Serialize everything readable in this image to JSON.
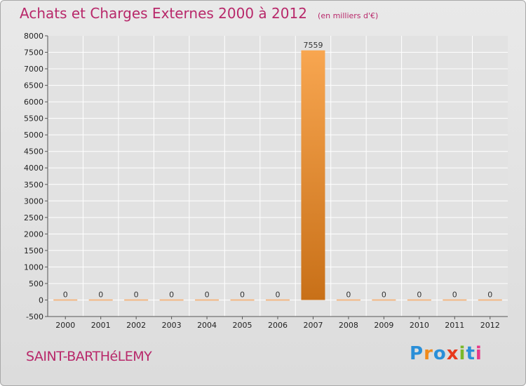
{
  "header": {
    "title": "Achats et Charges Externes 2000 à 2012",
    "subtitle": "(en milliers d'€)"
  },
  "footer": {
    "commune": "SAINT-BARTHéLEMY",
    "logo_text": "Proxiti"
  },
  "colors": {
    "title": "#b8286a",
    "bar_top": "#f8a650",
    "bar_bottom": "#c87018",
    "zero_bar": "#f4b884",
    "grid": "#ffffff",
    "logo": [
      "#2a8fd8",
      "#f08a1c",
      "#2a8fd8",
      "#e8381c",
      "#7ab82a",
      "#2a8fd8",
      "#e83888"
    ]
  },
  "chart_data": {
    "type": "bar",
    "title": "Achats et Charges Externes 2000 à 2012",
    "subtitle": "(en milliers d'€)",
    "categories": [
      "2000",
      "2001",
      "2002",
      "2003",
      "2004",
      "2005",
      "2006",
      "2007",
      "2008",
      "2009",
      "2010",
      "2011",
      "2012"
    ],
    "values": [
      0,
      0,
      0,
      0,
      0,
      0,
      0,
      7559,
      0,
      0,
      0,
      0,
      0
    ],
    "data_labels": [
      "0",
      "0",
      "0",
      "0",
      "0",
      "0",
      "0",
      "7559",
      "0",
      "0",
      "0",
      "0",
      "0"
    ],
    "ylim": [
      -500,
      8000
    ],
    "yticks": [
      "-500",
      "0",
      "500",
      "1000",
      "1500",
      "2000",
      "2500",
      "3000",
      "3500",
      "4000",
      "4500",
      "5000",
      "5500",
      "6000",
      "6500",
      "7000",
      "7500",
      "8000"
    ],
    "grid": true,
    "xlabel": "",
    "ylabel": ""
  }
}
